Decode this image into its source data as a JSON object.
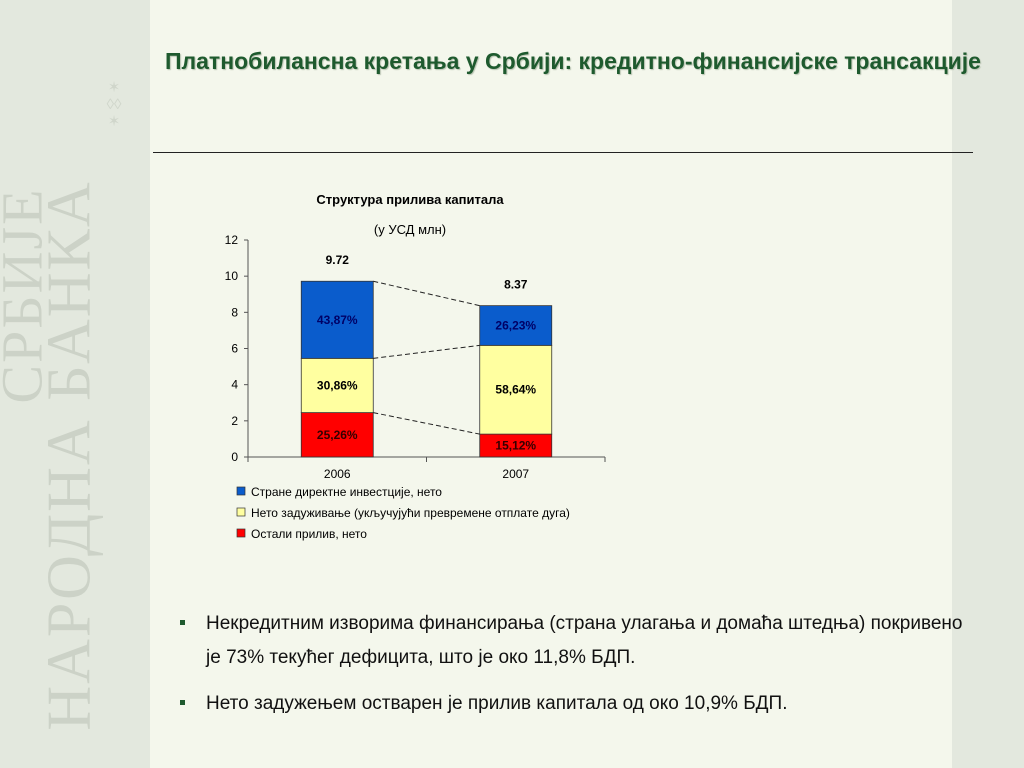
{
  "watermark": {
    "line1": "НАРОДНА БАНКА",
    "line2": "СРБИЈЕ"
  },
  "title": "Платнобилансна кретања у Србији: кредитно-финансијске трансакције",
  "chart_data": {
    "type": "bar",
    "stacked": true,
    "title": "Структура прилива капитала",
    "subtitle": "(у УСД млн)",
    "categories": [
      "2006",
      "2007"
    ],
    "totals": [
      "9.72",
      "8.37"
    ],
    "ylim": [
      0,
      12
    ],
    "yticks": [
      0,
      2,
      4,
      6,
      8,
      10,
      12
    ],
    "series": [
      {
        "name": "Остали прилив, нето",
        "color": "#ff0000",
        "values": [
          2.455,
          1.266
        ],
        "labels": [
          "25,26%",
          "15,12%"
        ]
      },
      {
        "name": "Нето задуживање (укључујући превремене отплате дуга)",
        "color": "#ffffa0",
        "values": [
          3.0,
          4.908
        ],
        "labels": [
          "30,86%",
          "58,64%"
        ]
      },
      {
        "name": "Стране директне инвестције, нето",
        "color": "#0a5ccc",
        "values": [
          4.264,
          2.196
        ],
        "labels": [
          "43,87%",
          "26,23%"
        ]
      }
    ],
    "legend_order": [
      2,
      1,
      0
    ],
    "legend_position": "bottom"
  },
  "bullets": [
    "Некредитним изворима финансирања (страна улагања и домаћа штедња) покривено је 73% текућег дефицита, што је око 11,8% БДП.",
    "Нето задужењем остварен је прилив капитала од око 10,9% БДП."
  ]
}
